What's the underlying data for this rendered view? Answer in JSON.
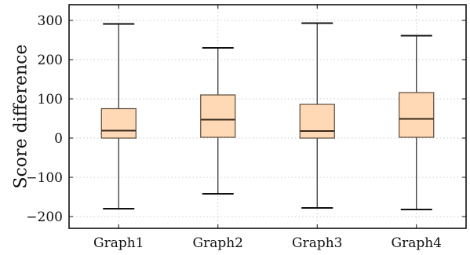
{
  "chart_data": {
    "type": "boxplot",
    "title": "",
    "xlabel": "",
    "ylabel": "Score difference",
    "ylim": [
      -230,
      340
    ],
    "yticks": [
      "300",
      "200",
      "100",
      "0",
      "−100",
      "−200"
    ],
    "ytick_values": [
      300,
      200,
      100,
      0,
      -100,
      -200
    ],
    "grid": true,
    "categories": [
      "Graph1",
      "Graph2",
      "Graph3",
      "Graph4"
    ],
    "boxes": [
      {
        "min": -180,
        "q1": 0,
        "median": 19,
        "q3": 75,
        "max": 291
      },
      {
        "min": -142,
        "q1": 2,
        "median": 47,
        "q3": 110,
        "max": 230
      },
      {
        "min": -178,
        "q1": 0,
        "median": 18,
        "q3": 86,
        "max": 293
      },
      {
        "min": -182,
        "q1": 2,
        "median": 49,
        "q3": 116,
        "max": 261
      }
    ],
    "colors": {
      "box_fill": "#ffd9b5",
      "box_stroke": "#5a4a3a",
      "whisker": "#2a2a2a",
      "grid": "#cccccc"
    }
  }
}
